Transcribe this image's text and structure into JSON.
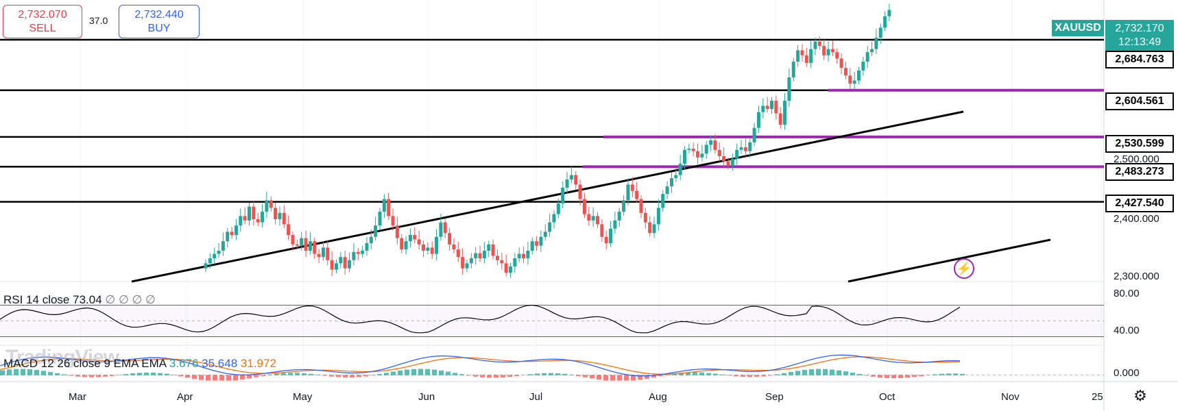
{
  "symbol": "XAUUSD",
  "quote": {
    "sell_price": "2,732.070",
    "sell_label": "SELL",
    "spread": "37.0",
    "buy_price": "2,732.440",
    "buy_label": "BUY"
  },
  "current_price": "2,732.170",
  "countdown": "12:13:49",
  "price_levels": [
    "2,684.763",
    "2,604.561",
    "2,530.599",
    "2,483.273",
    "2,427.540"
  ],
  "price_axis": [
    "2,500.000",
    "2,400.000",
    "2,300.000"
  ],
  "time_axis": [
    "Mar",
    "Apr",
    "May",
    "Jun",
    "Jul",
    "Aug",
    "Sep",
    "Oct",
    "Nov",
    "25"
  ],
  "rsi": {
    "label": "RSI 14 close",
    "value": "73.04",
    "placeholders": "∅ ∅ ∅ ∅",
    "axis": [
      "80.00",
      "40.00"
    ]
  },
  "macd": {
    "label": "MACD 12 26 close 9 EMA EMA",
    "hist": "3.676",
    "macd": "35.648",
    "signal": "31.972",
    "axis": [
      "0.000"
    ]
  },
  "watermark": "TradingView",
  "icons": {
    "alert": "lightning-icon",
    "settings": "gear-icon"
  },
  "colors": {
    "up": "#26a69a",
    "down": "#ef5350",
    "level": "#9c27b0",
    "macd": "#2962ff",
    "signal": "#ff6d00",
    "sell": "#f23645",
    "buy": "#2962ff"
  },
  "chart_data": {
    "type": "candlestick",
    "y_range": [
      2270,
      2760
    ],
    "horizontal_levels": [
      2684.763,
      2604.561,
      2530.599,
      2483.273,
      2427.54
    ],
    "closes": [
      2330,
      2338,
      2345,
      2350,
      2365,
      2380,
      2375,
      2390,
      2405,
      2398,
      2420,
      2400,
      2395,
      2412,
      2430,
      2418,
      2400,
      2410,
      2392,
      2375,
      2360,
      2358,
      2370,
      2350,
      2365,
      2345,
      2340,
      2355,
      2335,
      2320,
      2330,
      2340,
      2322,
      2335,
      2348,
      2345,
      2350,
      2362,
      2372,
      2390,
      2412,
      2432,
      2405,
      2390,
      2370,
      2352,
      2365,
      2375,
      2368,
      2360,
      2350,
      2355,
      2345,
      2372,
      2395,
      2378,
      2360,
      2352,
      2340,
      2322,
      2330,
      2338,
      2346,
      2338,
      2350,
      2360,
      2342,
      2335,
      2330,
      2315,
      2325,
      2338,
      2345,
      2338,
      2350,
      2365,
      2358,
      2372,
      2380,
      2395,
      2408,
      2425,
      2450,
      2463,
      2470,
      2455,
      2432,
      2408,
      2398,
      2405,
      2392,
      2372,
      2362,
      2385,
      2398,
      2412,
      2430,
      2455,
      2445,
      2432,
      2410,
      2395,
      2378,
      2392,
      2418,
      2440,
      2452,
      2465,
      2470,
      2488,
      2510,
      2512,
      2508,
      2498,
      2504,
      2518,
      2525,
      2510,
      2500,
      2492,
      2485,
      2496,
      2510,
      2514,
      2508,
      2522,
      2545,
      2570,
      2580,
      2575,
      2588,
      2568,
      2550,
      2588,
      2625,
      2650,
      2668,
      2660,
      2648,
      2670,
      2682,
      2675,
      2660,
      2670,
      2665,
      2655,
      2640,
      2628,
      2615,
      2620,
      2636,
      2650,
      2665,
      2670,
      2688,
      2704,
      2722,
      2732
    ],
    "rsi_range": [
      20,
      100
    ],
    "rsi_bands": [
      70,
      30
    ],
    "macd_range": [
      -10,
      45
    ]
  }
}
